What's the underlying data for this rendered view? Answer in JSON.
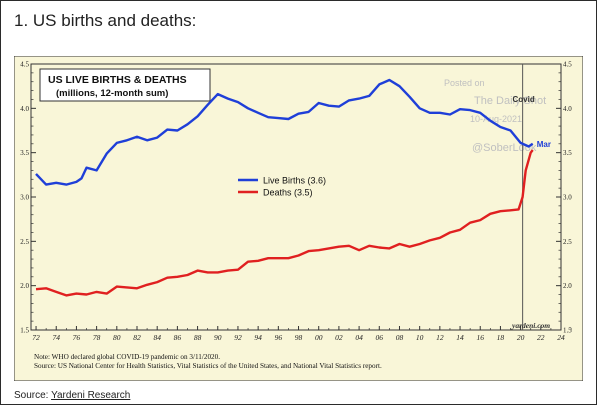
{
  "page": {
    "heading": "1. US births and deaths:",
    "source_prefix": "Source: ",
    "source_link": "Yardeni Research"
  },
  "chart_data": {
    "type": "line",
    "title": "US LIVE BIRTHS & DEATHS",
    "subtitle": "(millions, 12-month sum)",
    "xlim": [
      1971.5,
      2024
    ],
    "ylim": [
      1.5,
      4.5
    ],
    "x_ticks": [
      1972,
      1974,
      1976,
      1978,
      1980,
      1982,
      1984,
      1986,
      1988,
      1990,
      1992,
      1994,
      1996,
      1998,
      2000,
      2002,
      2004,
      2006,
      2008,
      2010,
      2012,
      2014,
      2016,
      2018,
      2020,
      2022,
      2024
    ],
    "x_tick_labels": [
      "72",
      "74",
      "76",
      "78",
      "80",
      "82",
      "84",
      "86",
      "88",
      "90",
      "92",
      "94",
      "96",
      "98",
      "00",
      "02",
      "04",
      "06",
      "08",
      "10",
      "12",
      "14",
      "16",
      "18",
      "20",
      "22",
      "24"
    ],
    "y_ticks": [
      1.5,
      2.0,
      2.5,
      3.0,
      3.5,
      4.0,
      4.5
    ],
    "y_tick_labels": [
      "1.5",
      "2.0",
      "2.5",
      "3.0",
      "3.5",
      "4.0",
      "4.5"
    ],
    "grid": false,
    "legend_position": "center-left",
    "vertical_marker": {
      "x": 2020.2,
      "label": "Covid"
    },
    "end_label": "Mar",
    "series": [
      {
        "name": "Live Births (3.6)",
        "color": "#1f3fd8",
        "x": [
          1972.0,
          1973.0,
          1974.0,
          1975.0,
          1976.0,
          1976.5,
          1977.0,
          1978.0,
          1979.0,
          1980.0,
          1981.0,
          1982.0,
          1983.0,
          1984.0,
          1985.0,
          1986.0,
          1987.0,
          1988.0,
          1989.0,
          1990.0,
          1991.0,
          1992.0,
          1993.0,
          1994.0,
          1995.0,
          1996.0,
          1997.0,
          1998.0,
          1999.0,
          2000.0,
          2001.0,
          2002.0,
          2003.0,
          2004.0,
          2005.0,
          2006.0,
          2007.0,
          2008.0,
          2009.0,
          2010.0,
          2011.0,
          2012.0,
          2013.0,
          2014.0,
          2015.0,
          2016.0,
          2017.0,
          2018.0,
          2019.0,
          2020.0,
          2020.8,
          2021.2
        ],
        "y": [
          3.26,
          3.14,
          3.16,
          3.14,
          3.17,
          3.21,
          3.33,
          3.3,
          3.49,
          3.61,
          3.64,
          3.68,
          3.64,
          3.67,
          3.76,
          3.75,
          3.82,
          3.91,
          4.04,
          4.16,
          4.11,
          4.07,
          4.0,
          3.95,
          3.9,
          3.89,
          3.88,
          3.94,
          3.96,
          4.06,
          4.03,
          4.02,
          4.09,
          4.11,
          4.14,
          4.27,
          4.32,
          4.25,
          4.13,
          4.0,
          3.95,
          3.95,
          3.93,
          3.99,
          3.98,
          3.95,
          3.86,
          3.79,
          3.75,
          3.61,
          3.57,
          3.6
        ]
      },
      {
        "name": "Deaths (3.5)",
        "color": "#e02020",
        "x": [
          1972.0,
          1973.0,
          1974.0,
          1975.0,
          1976.0,
          1977.0,
          1978.0,
          1979.0,
          1980.0,
          1981.0,
          1982.0,
          1983.0,
          1984.0,
          1985.0,
          1986.0,
          1987.0,
          1988.0,
          1989.0,
          1990.0,
          1991.0,
          1992.0,
          1993.0,
          1994.0,
          1995.0,
          1996.0,
          1997.0,
          1998.0,
          1999.0,
          2000.0,
          2001.0,
          2002.0,
          2003.0,
          2004.0,
          2005.0,
          2006.0,
          2007.0,
          2008.0,
          2009.0,
          2010.0,
          2011.0,
          2012.0,
          2013.0,
          2014.0,
          2015.0,
          2016.0,
          2017.0,
          2018.0,
          2019.0,
          2019.8,
          2020.2,
          2020.5,
          2021.0,
          2021.2
        ],
        "y": [
          1.96,
          1.97,
          1.93,
          1.89,
          1.91,
          1.9,
          1.93,
          1.91,
          1.99,
          1.98,
          1.97,
          2.01,
          2.04,
          2.09,
          2.1,
          2.12,
          2.17,
          2.15,
          2.15,
          2.17,
          2.18,
          2.27,
          2.28,
          2.31,
          2.31,
          2.31,
          2.34,
          2.39,
          2.4,
          2.42,
          2.44,
          2.45,
          2.4,
          2.45,
          2.43,
          2.42,
          2.47,
          2.44,
          2.47,
          2.51,
          2.54,
          2.6,
          2.63,
          2.71,
          2.74,
          2.81,
          2.84,
          2.85,
          2.86,
          3.0,
          3.3,
          3.5,
          3.53
        ]
      }
    ],
    "notes": [
      "Note: WHO declared global COVID-19 pandemic on 3/11/2020.",
      "Source: US National Center for Health Statistics, Vital Statistics of the United States, and National Vital Statistics report."
    ],
    "watermark": {
      "lines": [
        "Posted on",
        "The Daily Shot",
        "10-Aug-2021",
        "@SoberLook"
      ]
    },
    "brand": "yardeni.com",
    "colors": {
      "background": "#f9f6d8",
      "axis": "#333333",
      "marker": "#555555"
    }
  }
}
